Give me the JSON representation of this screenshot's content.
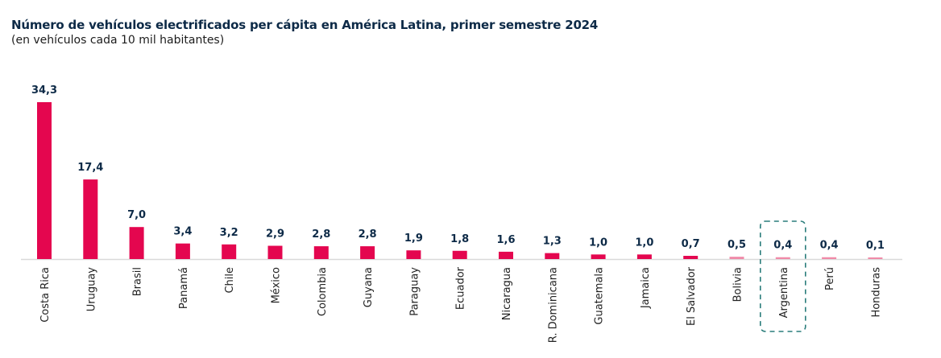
{
  "chart_data": {
    "type": "bar",
    "title": "Número de vehículos electrificados per cápita en América Latina, primer semestre 2024",
    "subtitle": "(en vehículos cada 10 mil habitantes)",
    "xlabel": "",
    "ylabel": "",
    "ylim": [
      0,
      34.3
    ],
    "grid": false,
    "legend": null,
    "categories": [
      "Costa Rica",
      "Uruguay",
      "Brasil",
      "Panamá",
      "Chile",
      "México",
      "Colombia",
      "Guyana",
      "Paraguay",
      "Ecuador",
      "Nicaragua",
      "R. Dominicana",
      "Guatemala",
      "Jamaica",
      "El Salvador",
      "Bolivia",
      "Argentina",
      "Perú",
      "Honduras"
    ],
    "values": [
      34.3,
      17.4,
      7.0,
      3.4,
      3.2,
      2.9,
      2.8,
      2.8,
      1.9,
      1.8,
      1.6,
      1.3,
      1.0,
      1.0,
      0.7,
      0.5,
      0.4,
      0.4,
      0.1
    ],
    "value_labels": [
      "34,3",
      "17,4",
      "7,0",
      "3,4",
      "3,2",
      "2,9",
      "2,8",
      "2,8",
      "1,9",
      "1,8",
      "1,6",
      "1,3",
      "1,0",
      "1,0",
      "0,7",
      "0,5",
      "0,4",
      "0,4",
      "0,1"
    ],
    "highlighted_category": "Argentina",
    "colors": {
      "bar": "#e4064f",
      "highlight_bar": "#f08aa8",
      "value_label": "#0d2a47",
      "baseline": "#d9d9d9",
      "highlight_box": "#2a7d7b"
    }
  }
}
